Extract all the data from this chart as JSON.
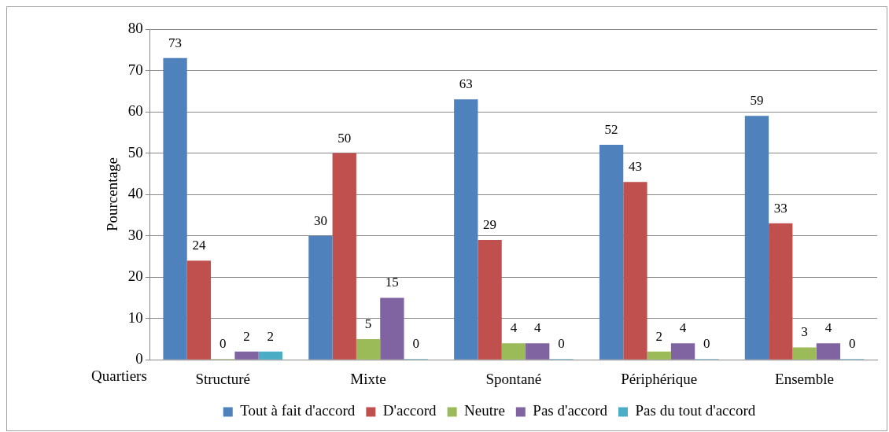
{
  "chart_data": {
    "type": "bar",
    "xlabel": "Quartiers",
    "ylabel": "Pourcentage",
    "categories": [
      "Structuré",
      "Mixte",
      "Spontané",
      "Périphérique",
      "Ensemble"
    ],
    "series": [
      {
        "name": "Tout à fait d'accord",
        "color": "#4f81bd",
        "values": [
          73,
          30,
          63,
          52,
          59
        ]
      },
      {
        "name": "D'accord",
        "color": "#c0504d",
        "values": [
          24,
          50,
          29,
          43,
          33
        ]
      },
      {
        "name": "Neutre",
        "color": "#9bbb59",
        "values": [
          0,
          5,
          4,
          2,
          3
        ]
      },
      {
        "name": "Pas d'accord",
        "color": "#8064a2",
        "values": [
          2,
          15,
          4,
          4,
          4
        ]
      },
      {
        "name": "Pas du tout d'accord",
        "color": "#4bacc6",
        "values": [
          2,
          0,
          0,
          0,
          0
        ]
      }
    ],
    "ylim": [
      0,
      80
    ],
    "yticks": [
      0,
      10,
      20,
      30,
      40,
      50,
      60,
      70,
      80
    ],
    "grid": "y",
    "legend": "bottom",
    "data_labels": true
  }
}
